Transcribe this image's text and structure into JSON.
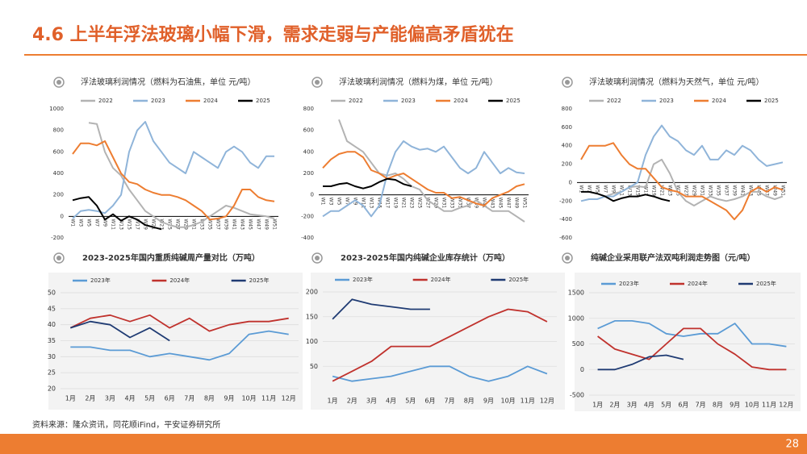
{
  "header": {
    "title": "4.6 上半年浮法玻璃小幅下滑，需求走弱与产能偏高矛盾犹在"
  },
  "chart_data": [
    {
      "type": "line",
      "title": "浮法玻璃利润情况（燃料为石油焦，单位 元/吨）",
      "categories": [
        "W1",
        "W3",
        "W5",
        "W7",
        "W9",
        "W11",
        "W13",
        "W15",
        "W17",
        "W19",
        "W21",
        "W23",
        "W25",
        "W27",
        "W29",
        "W31",
        "W33",
        "W35",
        "W37",
        "W39",
        "W41",
        "W43",
        "W45",
        "W47",
        "W49",
        "W51"
      ],
      "ylim": [
        -200,
        1000
      ],
      "yticks": [
        -200,
        0,
        200,
        400,
        600,
        800,
        1000
      ],
      "grid": false,
      "series": [
        {
          "name": "2022",
          "color": "#b3b3b3",
          "values": [
            null,
            null,
            870,
            860,
            600,
            450,
            380,
            250,
            150,
            50,
            0,
            -50,
            -80,
            -100,
            -100,
            -80,
            -50,
            0,
            50,
            100,
            80,
            50,
            20,
            10,
            0,
            -20
          ]
        },
        {
          "name": "2023",
          "color": "#8fb4d9",
          "values": [
            -20,
            50,
            60,
            50,
            30,
            100,
            200,
            600,
            800,
            880,
            700,
            600,
            500,
            450,
            400,
            600,
            550,
            500,
            450,
            600,
            650,
            600,
            500,
            450,
            560,
            560
          ]
        },
        {
          "name": "2024",
          "color": "#ed7d31",
          "values": [
            580,
            680,
            680,
            660,
            700,
            550,
            400,
            320,
            300,
            250,
            220,
            200,
            200,
            180,
            150,
            100,
            50,
            -30,
            -20,
            0,
            100,
            250,
            250,
            180,
            150,
            140
          ]
        },
        {
          "name": "2025",
          "color": "#000000",
          "values": [
            150,
            170,
            180,
            100,
            -30,
            20,
            -40,
            0,
            -30,
            -80,
            -100,
            -120,
            null,
            null,
            null,
            null,
            null,
            null,
            null,
            null,
            null,
            null,
            null,
            null,
            null,
            null
          ]
        }
      ]
    },
    {
      "type": "line",
      "title": "浮法玻璃利润情况（燃料为煤，单位 元/吨）",
      "categories": [
        "W1",
        "W3",
        "W5",
        "W7",
        "W9",
        "W11",
        "W13",
        "W15",
        "W17",
        "W19",
        "W21",
        "W23",
        "W25",
        "W27",
        "W29",
        "W31",
        "W33",
        "W35",
        "W37",
        "W39",
        "W41",
        "W43",
        "W45",
        "W47",
        "W49",
        "W51"
      ],
      "ylim": [
        -400,
        800
      ],
      "yticks": [
        -400,
        -200,
        0,
        200,
        400,
        600,
        800
      ],
      "grid": false,
      "series": [
        {
          "name": "2022",
          "color": "#b3b3b3",
          "values": [
            null,
            null,
            700,
            500,
            450,
            400,
            300,
            200,
            180,
            200,
            150,
            80,
            50,
            -50,
            -100,
            -150,
            -150,
            -120,
            -100,
            -50,
            -100,
            -150,
            -150,
            -150,
            -200,
            -250
          ]
        },
        {
          "name": "2023",
          "color": "#8fb4d9",
          "values": [
            -200,
            -150,
            -150,
            -100,
            -50,
            -100,
            -200,
            -100,
            200,
            400,
            500,
            450,
            420,
            430,
            400,
            450,
            350,
            250,
            200,
            250,
            400,
            300,
            200,
            250,
            210,
            200
          ]
        },
        {
          "name": "2024",
          "color": "#ed7d31",
          "values": [
            250,
            330,
            380,
            400,
            400,
            350,
            230,
            200,
            150,
            180,
            200,
            150,
            100,
            50,
            20,
            20,
            -30,
            -20,
            -50,
            -80,
            -100,
            -30,
            0,
            30,
            80,
            100
          ]
        },
        {
          "name": "2025",
          "color": "#000000",
          "values": [
            80,
            80,
            100,
            110,
            80,
            60,
            80,
            120,
            150,
            140,
            100,
            80,
            null,
            null,
            null,
            null,
            null,
            null,
            null,
            null,
            null,
            null,
            null,
            null,
            null,
            null
          ]
        }
      ]
    },
    {
      "type": "line",
      "title": "浮法玻璃利润情况（燃料为天然气，单位 元/吨）",
      "categories": [
        "W1",
        "W3",
        "W5",
        "W7",
        "W9",
        "W11",
        "W13",
        "W15",
        "W17",
        "W19",
        "W21",
        "W23",
        "W25",
        "W27",
        "W29",
        "W31",
        "W33",
        "W35",
        "W37",
        "W39",
        "W41",
        "W43",
        "W45",
        "W47",
        "W49",
        "W51"
      ],
      "ylim": [
        -600,
        800
      ],
      "yticks": [
        -600,
        -400,
        -200,
        0,
        200,
        400,
        600,
        800
      ],
      "grid": false,
      "series": [
        {
          "name": "2022",
          "color": "#b3b3b3",
          "values": [
            null,
            null,
            null,
            -150,
            -120,
            -100,
            -50,
            -40,
            -50,
            200,
            250,
            100,
            -100,
            -200,
            -250,
            -200,
            -150,
            -180,
            -200,
            -180,
            -150,
            -100,
            -100,
            -150,
            -180,
            -150
          ]
        },
        {
          "name": "2023",
          "color": "#8fb4d9",
          "values": [
            -200,
            -180,
            -180,
            -150,
            -150,
            -100,
            -50,
            0,
            300,
            500,
            620,
            500,
            450,
            350,
            300,
            400,
            250,
            250,
            350,
            300,
            400,
            350,
            250,
            180,
            200,
            220
          ]
        },
        {
          "name": "2024",
          "color": "#ed7d31",
          "values": [
            250,
            400,
            400,
            400,
            430,
            300,
            200,
            150,
            150,
            50,
            -50,
            -80,
            -100,
            -150,
            -150,
            -150,
            -200,
            -250,
            -300,
            -400,
            -300,
            -100,
            -50,
            -100,
            -50,
            -80
          ]
        },
        {
          "name": "2025",
          "color": "#000000",
          "values": [
            -100,
            -100,
            -120,
            -150,
            -200,
            -170,
            -150,
            -150,
            -130,
            -150,
            -180,
            -200,
            null,
            null,
            null,
            null,
            null,
            null,
            null,
            null,
            null,
            null,
            null,
            null,
            null,
            null
          ]
        }
      ]
    },
    {
      "type": "line",
      "title": "2023-2025年国内重质纯碱周产量对比（万吨）",
      "categories": [
        "1月",
        "2月",
        "3月",
        "4月",
        "5月",
        "6月",
        "7月",
        "8月",
        "9月",
        "10月",
        "11月",
        "12月"
      ],
      "ylim": [
        20,
        50
      ],
      "yticks": [
        20,
        25,
        30,
        35,
        40,
        45,
        50
      ],
      "grid": true,
      "series": [
        {
          "name": "2023年",
          "color": "#5b9bd5",
          "values": [
            33,
            33,
            32,
            32,
            30,
            31,
            30,
            29,
            31,
            37,
            38,
            37
          ]
        },
        {
          "name": "2024年",
          "color": "#c0322d",
          "values": [
            39,
            42,
            43,
            41,
            43,
            39,
            42,
            38,
            40,
            41,
            41,
            42
          ]
        },
        {
          "name": "2025年",
          "color": "#1f3b73",
          "values": [
            39,
            41,
            40,
            36,
            39,
            35,
            null,
            null,
            null,
            null,
            null,
            null
          ]
        }
      ]
    },
    {
      "type": "line",
      "title": "2023-2025年国内纯碱企业库存统计（万吨）",
      "categories": [
        "1月",
        "2月",
        "3月",
        "4月",
        "5月",
        "6月",
        "7月",
        "8月",
        "9月",
        "10月",
        "11月",
        "12月"
      ],
      "ylim": [
        0,
        200
      ],
      "yticks": [
        50,
        100,
        150,
        200
      ],
      "grid": true,
      "series": [
        {
          "name": "2023年",
          "color": "#5b9bd5",
          "values": [
            30,
            20,
            25,
            30,
            40,
            50,
            50,
            30,
            20,
            30,
            50,
            35
          ]
        },
        {
          "name": "2024年",
          "color": "#c0322d",
          "values": [
            20,
            40,
            60,
            90,
            90,
            90,
            110,
            130,
            150,
            165,
            160,
            140
          ]
        },
        {
          "name": "2025年",
          "color": "#1f3b73",
          "values": [
            145,
            185,
            175,
            170,
            165,
            165,
            null,
            null,
            null,
            null,
            null,
            null
          ]
        }
      ]
    },
    {
      "type": "line",
      "title": "纯碱企业采用联产法双吨利润走势图（元/吨）",
      "categories": [
        "1月",
        "2月",
        "3月",
        "4月",
        "5月",
        "6月",
        "7月",
        "8月",
        "9月",
        "10月",
        "11月",
        "12月"
      ],
      "ylim": [
        -500,
        1500
      ],
      "yticks": [
        -500,
        0,
        500,
        1000,
        1500
      ],
      "grid": true,
      "series": [
        {
          "name": "2023年",
          "color": "#5b9bd5",
          "values": [
            800,
            950,
            950,
            900,
            700,
            650,
            700,
            700,
            900,
            500,
            500,
            450
          ]
        },
        {
          "name": "2024年",
          "color": "#c0322d",
          "values": [
            650,
            400,
            300,
            200,
            500,
            800,
            800,
            500,
            300,
            50,
            0,
            0
          ]
        },
        {
          "name": "2025年",
          "color": "#1f3b73",
          "values": [
            0,
            0,
            100,
            250,
            280,
            200,
            null,
            null,
            null,
            null,
            null,
            null
          ]
        }
      ]
    }
  ],
  "footer": {
    "source": "资料来源：隆众资讯，同花顺iFind，平安证券研究所",
    "page": "28"
  }
}
